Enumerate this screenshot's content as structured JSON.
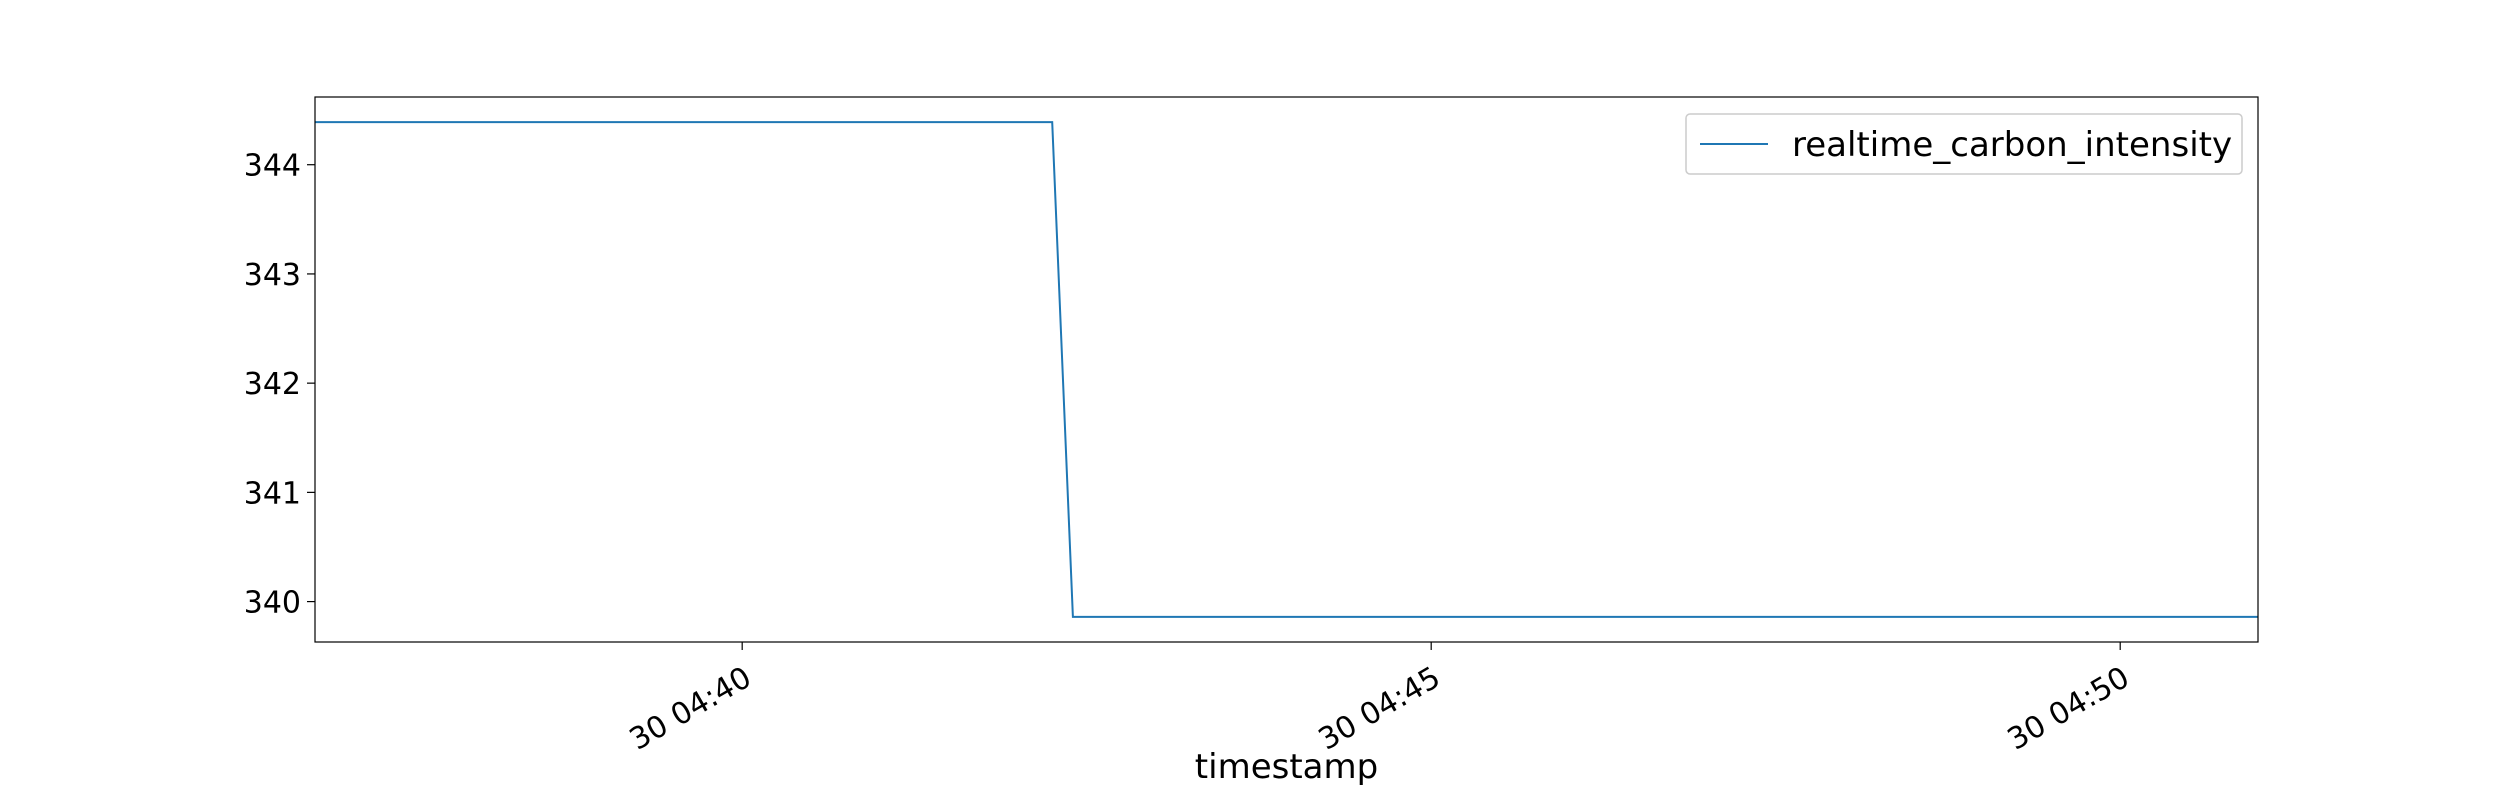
{
  "chart_data": {
    "type": "line",
    "title": "",
    "xlabel": "timestamp",
    "ylabel": "",
    "x_unit": "minutes",
    "x_range": [
      "04:36.9",
      "04:51.0"
    ],
    "ylim": [
      339.63,
      344.62
    ],
    "y_ticks": [
      340,
      341,
      342,
      343,
      344
    ],
    "x_ticks": [
      {
        "value": "04:40",
        "label": "30 04:40"
      },
      {
        "value": "04:45",
        "label": "30 04:45"
      },
      {
        "value": "04:50",
        "label": "30 04:50"
      }
    ],
    "grid": false,
    "legend_position": "top-right",
    "series": [
      {
        "name": "realtime_carbon_intensity",
        "color": "#1f77b4",
        "points": [
          {
            "x": "04:36.9",
            "y": 344.39
          },
          {
            "x": "04:42.25",
            "y": 344.39
          },
          {
            "x": "04:42.4",
            "y": 339.86
          },
          {
            "x": "04:51.0",
            "y": 339.86
          }
        ]
      }
    ]
  }
}
